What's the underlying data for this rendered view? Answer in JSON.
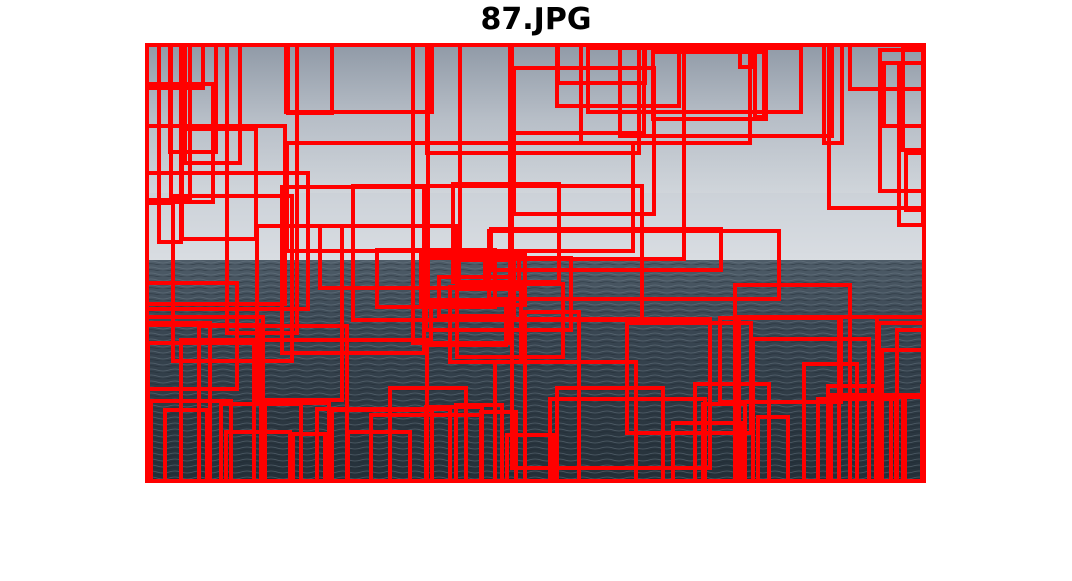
{
  "figure": {
    "title": "87.JPG"
  },
  "image": {
    "sky_colors": [
      "#8f99a6",
      "#b7bec7",
      "#d4d9de",
      "#e3e6e9"
    ],
    "sea_colors": [
      "#4e5c68",
      "#3a4753",
      "#2c3842",
      "#243039"
    ],
    "horizon_haze": "#c5ccd3",
    "box_color": "#ff0000"
  }
}
